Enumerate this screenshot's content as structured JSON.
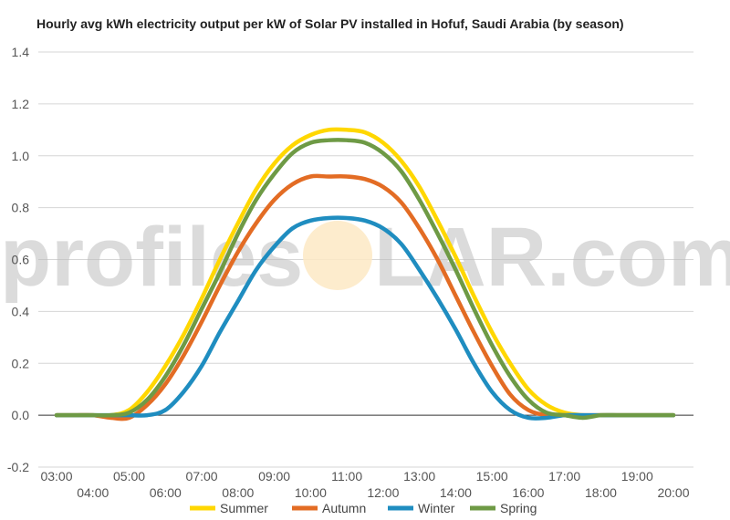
{
  "watermark": {
    "left": "profiles",
    "right": "LAR.com"
  },
  "chart_data": {
    "type": "line",
    "title": "Hourly avg kWh electricity output per kW of Solar PV installed in Hofuf, Saudi Arabia (by season)",
    "xlabel": "",
    "ylabel": "",
    "x_tick_labels": [
      "03:00",
      "04:00",
      "05:00",
      "06:00",
      "07:00",
      "08:00",
      "09:00",
      "10:00",
      "11:00",
      "12:00",
      "13:00",
      "14:00",
      "15:00",
      "16:00",
      "17:00",
      "18:00",
      "19:00",
      "20:00"
    ],
    "x_range": [
      3,
      20
    ],
    "y_ticks": [
      "-0.2",
      "0.0",
      "0.2",
      "0.4",
      "0.6",
      "0.8",
      "1.0",
      "1.2",
      "1.4"
    ],
    "ylim": [
      -0.2,
      1.4
    ],
    "grid": true,
    "legend": "bottom",
    "x": [
      3.0,
      3.5,
      4.0,
      4.5,
      5.0,
      5.5,
      6.0,
      6.5,
      7.0,
      7.5,
      8.0,
      8.5,
      9.0,
      9.5,
      10.0,
      10.5,
      11.0,
      11.5,
      12.0,
      12.5,
      13.0,
      13.5,
      14.0,
      14.5,
      15.0,
      15.5,
      16.0,
      16.5,
      17.0,
      17.5,
      18.0,
      18.5,
      19.0,
      19.5,
      20.0
    ],
    "series": [
      {
        "name": "Summer",
        "color": "#FFD700",
        "values": [
          0.0,
          0.0,
          0.0,
          0.0,
          0.02,
          0.09,
          0.19,
          0.31,
          0.45,
          0.6,
          0.74,
          0.87,
          0.97,
          1.04,
          1.08,
          1.1,
          1.1,
          1.09,
          1.05,
          0.98,
          0.88,
          0.75,
          0.61,
          0.46,
          0.32,
          0.2,
          0.1,
          0.04,
          0.01,
          0.0,
          0.0,
          0.0,
          0.0,
          0.0,
          0.0
        ]
      },
      {
        "name": "Autumn",
        "color": "#E36C24",
        "values": [
          0.0,
          0.0,
          0.0,
          -0.01,
          -0.01,
          0.04,
          0.12,
          0.23,
          0.36,
          0.5,
          0.63,
          0.74,
          0.83,
          0.89,
          0.92,
          0.92,
          0.92,
          0.91,
          0.88,
          0.82,
          0.72,
          0.6,
          0.46,
          0.32,
          0.19,
          0.08,
          0.02,
          0.0,
          0.0,
          0.0,
          0.0,
          0.0,
          0.0,
          0.0,
          0.0
        ]
      },
      {
        "name": "Winter",
        "color": "#1F8DC0",
        "values": [
          0.0,
          0.0,
          0.0,
          0.0,
          0.0,
          0.0,
          0.02,
          0.09,
          0.19,
          0.32,
          0.44,
          0.56,
          0.65,
          0.72,
          0.75,
          0.76,
          0.76,
          0.75,
          0.72,
          0.66,
          0.56,
          0.45,
          0.33,
          0.2,
          0.09,
          0.02,
          -0.01,
          -0.01,
          0.0,
          0.0,
          0.0,
          0.0,
          0.0,
          0.0,
          0.0
        ]
      },
      {
        "name": "Spring",
        "color": "#6E9A45",
        "values": [
          0.0,
          0.0,
          0.0,
          0.0,
          0.01,
          0.06,
          0.15,
          0.27,
          0.41,
          0.55,
          0.7,
          0.83,
          0.93,
          1.01,
          1.05,
          1.06,
          1.06,
          1.05,
          1.01,
          0.94,
          0.83,
          0.7,
          0.56,
          0.41,
          0.27,
          0.15,
          0.06,
          0.01,
          0.0,
          -0.01,
          0.0,
          0.0,
          0.0,
          0.0,
          0.0
        ]
      }
    ]
  }
}
